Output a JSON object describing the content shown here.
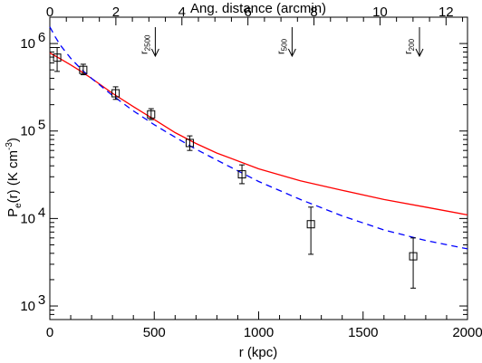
{
  "chart_data": {
    "type": "scatter",
    "xlabel": "r (kpc)",
    "ylabel": "P",
    "ylabel_sub": "e",
    "ylabel_rest": "(r)  (K cm",
    "ylabel_sup": "-3",
    "ylabel_close": ")",
    "x2label": "Ang. distance (arcmin)",
    "xlim": [
      0,
      2000
    ],
    "ylim": [
      700,
      2000000
    ],
    "yscale": "log",
    "x2lim": [
      0,
      12.65
    ],
    "x_ticks": [
      "0",
      "500",
      "1000",
      "1500",
      "2000"
    ],
    "x2_ticks": [
      "0",
      "2",
      "4",
      "6",
      "8",
      "10",
      "12"
    ],
    "y_ticks": [
      {
        "base": "10",
        "exp": "3",
        "value": 1000
      },
      {
        "base": "10",
        "exp": "4",
        "value": 10000
      },
      {
        "base": "10",
        "exp": "5",
        "value": 100000
      },
      {
        "base": "10",
        "exp": "6",
        "value": 1000000
      }
    ],
    "markers": [
      {
        "label": "r",
        "sub": "2500",
        "x": 505
      },
      {
        "label": "r",
        "sub": "500",
        "x": 1160
      },
      {
        "label": "r",
        "sub": "200",
        "x": 1770
      }
    ],
    "points": [
      {
        "x": 35,
        "y": 690000,
        "ylo": 480000,
        "yhi": 900000
      },
      {
        "x": 160,
        "y": 500000,
        "ylo": 440000,
        "yhi": 580000
      },
      {
        "x": 315,
        "y": 270000,
        "ylo": 230000,
        "yhi": 320000
      },
      {
        "x": 485,
        "y": 155000,
        "ylo": 135000,
        "yhi": 180000
      },
      {
        "x": 670,
        "y": 73000,
        "ylo": 60000,
        "yhi": 88000
      },
      {
        "x": 920,
        "y": 32000,
        "ylo": 25000,
        "yhi": 41000
      },
      {
        "x": 1250,
        "y": 8600,
        "ylo": 3900,
        "yhi": 13500
      },
      {
        "x": 1740,
        "y": 3700,
        "ylo": 1600,
        "yhi": 6000
      }
    ],
    "series": [
      {
        "style": "solid",
        "color": "#ff0000",
        "x": [
          0,
          50,
          100,
          150,
          200,
          300,
          400,
          500,
          600,
          700,
          800,
          1000,
          1200,
          1400,
          1600,
          1800,
          2000
        ],
        "y": [
          780000,
          670000,
          570000,
          480000,
          400000,
          270000,
          190000,
          135000,
          96000,
          72000,
          56000,
          37000,
          27000,
          21000,
          16500,
          13500,
          11000
        ]
      },
      {
        "style": "dashed",
        "color": "#0000ff",
        "x": [
          0,
          25,
          50,
          100,
          150,
          200,
          300,
          400,
          500,
          600,
          700,
          800,
          1000,
          1200,
          1400,
          1600,
          1800,
          2000
        ],
        "y": [
          1550000,
          1200000,
          960000,
          680000,
          510000,
          400000,
          255000,
          170000,
          118000,
          85000,
          62000,
          46500,
          26500,
          16500,
          10700,
          7400,
          5600,
          4500
        ]
      }
    ]
  }
}
